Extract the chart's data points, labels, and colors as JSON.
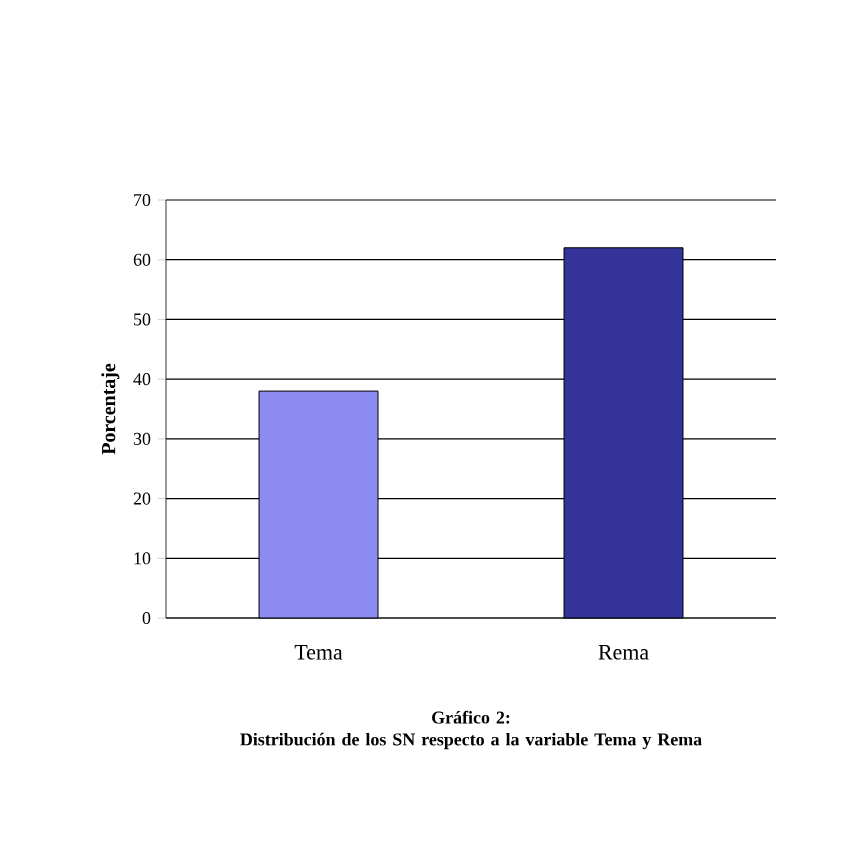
{
  "chart_data": {
    "type": "bar",
    "title": "Gráfico 2:",
    "subtitle": "Distribución de los SN respecto a la variable Tema y Rema",
    "ylabel": "Porcentaje",
    "categories": [
      "Tema",
      "Rema"
    ],
    "values": [
      38,
      62
    ],
    "colors": [
      "#8c8cf0",
      "#333399"
    ],
    "ylim": [
      0,
      70
    ],
    "yticks": [
      0,
      10,
      20,
      30,
      40,
      50,
      60,
      70
    ],
    "grid": "y"
  }
}
